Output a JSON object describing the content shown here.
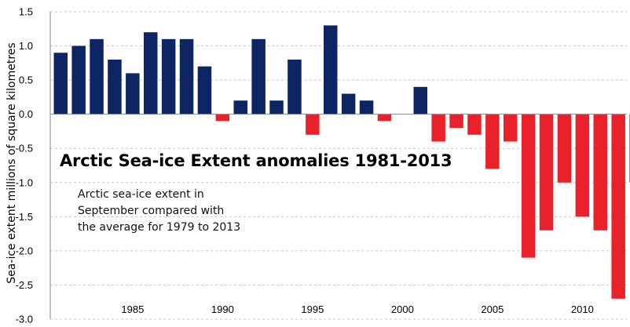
{
  "chart_data": {
    "type": "bar",
    "title": "Arctic Sea-ice Extent anomalies  1981-2013",
    "subtitle_lines": [
      "Arctic sea-ice extent in",
      "September compared with",
      "the average for 1979 to 2013"
    ],
    "xlabel": "",
    "ylabel": "Sea-ice extent millions of square kilometres",
    "ylim": [
      -3.0,
      1.5
    ],
    "yticks": [
      1.5,
      1.0,
      0.5,
      0.0,
      -0.5,
      -1.0,
      -1.5,
      -2.0,
      -2.5,
      -3.0
    ],
    "ytick_labels": [
      "1.5",
      "1.0",
      "0.5",
      "0.0",
      "-0.5",
      "-1.0",
      "-1.5",
      "-2.0",
      "-2.5",
      "-3.0"
    ],
    "xticks": [
      1985,
      1990,
      1995,
      2000,
      2005,
      2010
    ],
    "grid": true,
    "positive_color": "#0d2563",
    "negative_color": "#e8212a",
    "categories": [
      1981,
      1982,
      1983,
      1984,
      1985,
      1986,
      1987,
      1988,
      1989,
      1990,
      1991,
      1992,
      1993,
      1994,
      1995,
      1996,
      1997,
      1998,
      1999,
      2000,
      2001,
      2002,
      2003,
      2004,
      2005,
      2006,
      2007,
      2008,
      2009,
      2010,
      2011,
      2012,
      2013
    ],
    "values": [
      0.9,
      1.0,
      1.1,
      0.8,
      0.6,
      1.2,
      1.1,
      1.1,
      0.7,
      -0.1,
      0.2,
      1.1,
      0.2,
      0.8,
      -0.3,
      1.3,
      0.3,
      0.2,
      -0.1,
      0.0,
      0.4,
      -0.4,
      -0.2,
      -0.3,
      -0.8,
      -0.4,
      -2.1,
      -1.7,
      -1.0,
      -1.5,
      -1.7,
      -2.7,
      -1.0
    ]
  }
}
